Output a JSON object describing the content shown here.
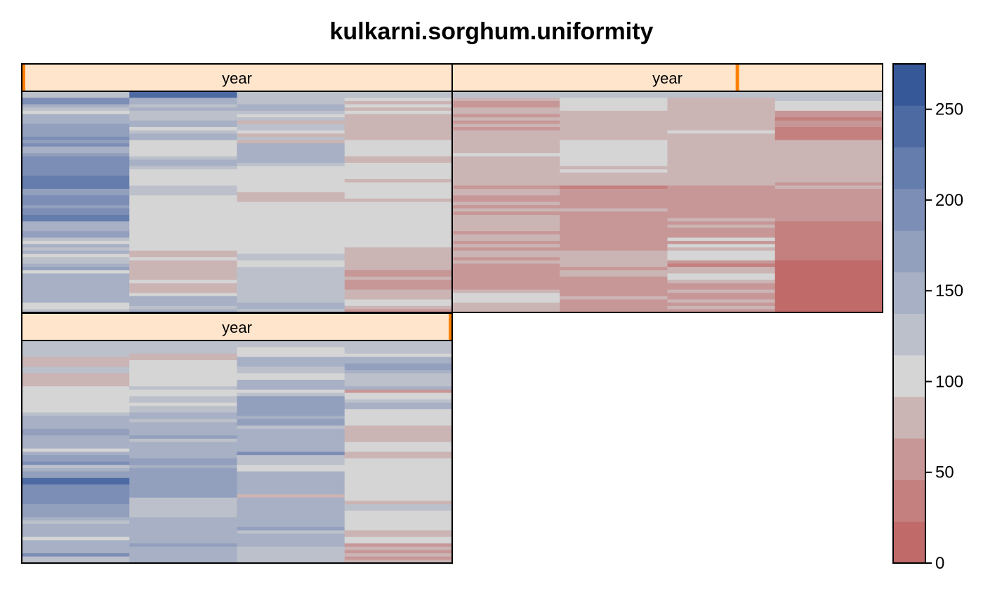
{
  "chart_data": {
    "type": "heatmap",
    "title": "kulkarni.sorghum.uniformity",
    "colorscale": {
      "min": 0,
      "max": 275,
      "ticks": [
        0,
        50,
        100,
        150,
        200,
        250
      ],
      "bins": [
        {
          "from": 0,
          "to": 22.9,
          "color": "#c06a6a"
        },
        {
          "from": 22.9,
          "to": 45.8,
          "color": "#c47f7f"
        },
        {
          "from": 45.8,
          "to": 68.8,
          "color": "#c79797"
        },
        {
          "from": 68.8,
          "to": 91.7,
          "color": "#cbb4b4"
        },
        {
          "from": 91.7,
          "to": 114.6,
          "color": "#d5d5d5"
        },
        {
          "from": 114.6,
          "to": 137.5,
          "color": "#bcc0ca"
        },
        {
          "from": 137.5,
          "to": 160.4,
          "color": "#a7b0c4"
        },
        {
          "from": 160.4,
          "to": 183.3,
          "color": "#929fbd"
        },
        {
          "from": 183.3,
          "to": 206.3,
          "color": "#7c8eb6"
        },
        {
          "from": 206.3,
          "to": 229.2,
          "color": "#657dad"
        },
        {
          "from": 229.2,
          "to": 252.1,
          "color": "#4d6aa3"
        },
        {
          "from": 252.1,
          "to": 275,
          "color": "#375898"
        }
      ]
    },
    "panels": [
      {
        "strip": "year",
        "level": 1,
        "of_levels": 3,
        "columns": [
          [
            125,
            125,
            205,
            205,
            160,
            125,
            100,
            160,
            160,
            160,
            175,
            175,
            175,
            175,
            195,
            165,
            205,
            160,
            160,
            165,
            195,
            195,
            195,
            195,
            195,
            195,
            220,
            220,
            220,
            220,
            175,
            165,
            195,
            195,
            195,
            175,
            195,
            195,
            220,
            220,
            150,
            150,
            150,
            165,
            165,
            125,
            100,
            145,
            125,
            150,
            110,
            125,
            130,
            140,
            165,
            105,
            140,
            140,
            140,
            140,
            140,
            140,
            140,
            140,
            140,
            100,
            100,
            125
          ],
          [
            230,
            230,
            140,
            140,
            125,
            140,
            125,
            125,
            130,
            140,
            140,
            110,
            125,
            140,
            140,
            105,
            105,
            105,
            105,
            110,
            125,
            140,
            140,
            125,
            110,
            110,
            110,
            110,
            110,
            125,
            125,
            130,
            110,
            105,
            105,
            105,
            105,
            105,
            105,
            105,
            105,
            105,
            105,
            105,
            105,
            105,
            105,
            105,
            105,
            80,
            80,
            110,
            75,
            75,
            75,
            75,
            75,
            75,
            110,
            75,
            75,
            75,
            100,
            140,
            140,
            140,
            125,
            140
          ],
          [
            125,
            125,
            125,
            125,
            140,
            140,
            125,
            110,
            125,
            80,
            125,
            125,
            95,
            80,
            125,
            80,
            140,
            140,
            140,
            140,
            140,
            140,
            125,
            105,
            105,
            105,
            105,
            105,
            105,
            105,
            110,
            70,
            75,
            75,
            105,
            110,
            110,
            110,
            110,
            110,
            110,
            110,
            105,
            105,
            105,
            105,
            105,
            105,
            105,
            105,
            125,
            125,
            95,
            95,
            125,
            125,
            125,
            125,
            125,
            125,
            125,
            125,
            125,
            125,
            125,
            140,
            140,
            125
          ],
          [
            125,
            125,
            110,
            70,
            105,
            70,
            110,
            70,
            80,
            80,
            80,
            75,
            75,
            75,
            75,
            110,
            110,
            110,
            110,
            110,
            75,
            75,
            110,
            110,
            110,
            110,
            110,
            80,
            110,
            110,
            110,
            110,
            110,
            80,
            110,
            110,
            110,
            110,
            110,
            110,
            110,
            110,
            110,
            110,
            110,
            110,
            110,
            110,
            80,
            80,
            80,
            80,
            80,
            80,
            80,
            60,
            60,
            80,
            60,
            60,
            55,
            70,
            70,
            70,
            110,
            110,
            75,
            60
          ]
        ]
      },
      {
        "strip": "year",
        "level": 2,
        "of_levels": 3,
        "columns": [
          [
            125,
            125,
            80,
            60,
            60,
            75,
            80,
            55,
            80,
            60,
            80,
            60,
            80,
            80,
            80,
            80,
            80,
            80,
            80,
            100,
            80,
            80,
            80,
            80,
            80,
            80,
            80,
            80,
            80,
            60,
            80,
            80,
            60,
            60,
            75,
            60,
            80,
            60,
            80,
            80,
            80,
            80,
            80,
            60,
            80,
            80,
            60,
            75,
            60,
            80,
            80,
            60,
            80,
            60,
            60,
            60,
            60,
            60,
            60,
            60,
            60,
            80,
            110,
            100,
            110,
            75,
            80,
            80
          ],
          [
            125,
            125,
            110,
            110,
            110,
            110,
            80,
            80,
            80,
            80,
            80,
            80,
            80,
            80,
            80,
            110,
            110,
            110,
            110,
            110,
            110,
            110,
            110,
            80,
            110,
            80,
            75,
            75,
            75,
            40,
            60,
            60,
            60,
            60,
            60,
            60,
            75,
            60,
            60,
            60,
            60,
            60,
            60,
            60,
            60,
            60,
            60,
            60,
            60,
            80,
            80,
            80,
            80,
            80,
            60,
            80,
            80,
            60,
            60,
            60,
            60,
            60,
            60,
            80,
            60,
            60,
            60,
            60
          ],
          [
            125,
            125,
            75,
            75,
            75,
            75,
            75,
            75,
            80,
            75,
            75,
            75,
            110,
            80,
            80,
            80,
            80,
            75,
            80,
            80,
            80,
            80,
            80,
            80,
            80,
            80,
            80,
            80,
            80,
            60,
            60,
            60,
            60,
            60,
            60,
            60,
            60,
            60,
            60,
            80,
            55,
            80,
            60,
            60,
            60,
            110,
            60,
            110,
            80,
            110,
            110,
            110,
            60,
            40,
            80,
            80,
            110,
            110,
            80,
            60,
            60,
            80,
            60,
            60,
            80,
            60,
            80,
            60
          ],
          [
            125,
            125,
            125,
            110,
            110,
            110,
            60,
            60,
            40,
            55,
            55,
            40,
            40,
            40,
            40,
            80,
            80,
            80,
            80,
            80,
            80,
            80,
            80,
            80,
            80,
            80,
            80,
            80,
            60,
            80,
            60,
            60,
            60,
            60,
            60,
            60,
            60,
            60,
            60,
            60,
            40,
            40,
            40,
            40,
            40,
            40,
            40,
            40,
            40,
            40,
            40,
            40,
            20,
            20,
            20,
            20,
            20,
            20,
            20,
            20,
            20,
            20,
            20,
            20,
            20,
            20,
            20,
            20
          ]
        ]
      },
      {
        "strip": "year",
        "level": 3,
        "of_levels": 3,
        "columns": [
          [
            125,
            125,
            125,
            125,
            125,
            80,
            80,
            80,
            120,
            120,
            80,
            80,
            80,
            75,
            105,
            105,
            105,
            105,
            105,
            105,
            105,
            105,
            125,
            150,
            150,
            155,
            155,
            175,
            175,
            160,
            150,
            150,
            145,
            105,
            150,
            175,
            175,
            205,
            125,
            150,
            175,
            175,
            230,
            250,
            195,
            195,
            205,
            205,
            205,
            205,
            180,
            180,
            175,
            175,
            150,
            125,
            150,
            150,
            150,
            150,
            110,
            140,
            140,
            160,
            160,
            195,
            125,
            125
          ],
          [
            125,
            125,
            120,
            120,
            80,
            80,
            105,
            105,
            105,
            105,
            105,
            105,
            105,
            105,
            120,
            105,
            105,
            120,
            120,
            105,
            125,
            125,
            140,
            140,
            125,
            140,
            140,
            150,
            150,
            175,
            125,
            150,
            140,
            160,
            145,
            145,
            165,
            165,
            140,
            170,
            170,
            170,
            175,
            175,
            175,
            175,
            175,
            175,
            130,
            130,
            130,
            130,
            130,
            130,
            150,
            150,
            150,
            150,
            150,
            150,
            150,
            150,
            170,
            155,
            150,
            150,
            150,
            155
          ],
          [
            125,
            125,
            110,
            110,
            110,
            140,
            140,
            140,
            120,
            120,
            110,
            110,
            140,
            140,
            140,
            110,
            125,
            175,
            175,
            175,
            175,
            175,
            175,
            140,
            175,
            175,
            125,
            140,
            160,
            160,
            160,
            160,
            160,
            140,
            190,
            125,
            125,
            135,
            110,
            110,
            140,
            140,
            140,
            140,
            140,
            145,
            145,
            75,
            145,
            140,
            140,
            140,
            140,
            140,
            140,
            140,
            140,
            165,
            125,
            140,
            140,
            140,
            140,
            125,
            125,
            125,
            125,
            125
          ],
          [
            125,
            125,
            125,
            125,
            105,
            150,
            150,
            175,
            175,
            140,
            125,
            135,
            115,
            130,
            140,
            50,
            110,
            110,
            125,
            140,
            140,
            110,
            110,
            110,
            110,
            110,
            75,
            75,
            75,
            75,
            75,
            110,
            110,
            110,
            80,
            80,
            110,
            110,
            110,
            110,
            110,
            110,
            110,
            110,
            110,
            110,
            110,
            110,
            105,
            70,
            120,
            120,
            110,
            110,
            110,
            110,
            110,
            110,
            80,
            80,
            110,
            110,
            55,
            80,
            60,
            75,
            55,
            70
          ]
        ]
      }
    ]
  }
}
